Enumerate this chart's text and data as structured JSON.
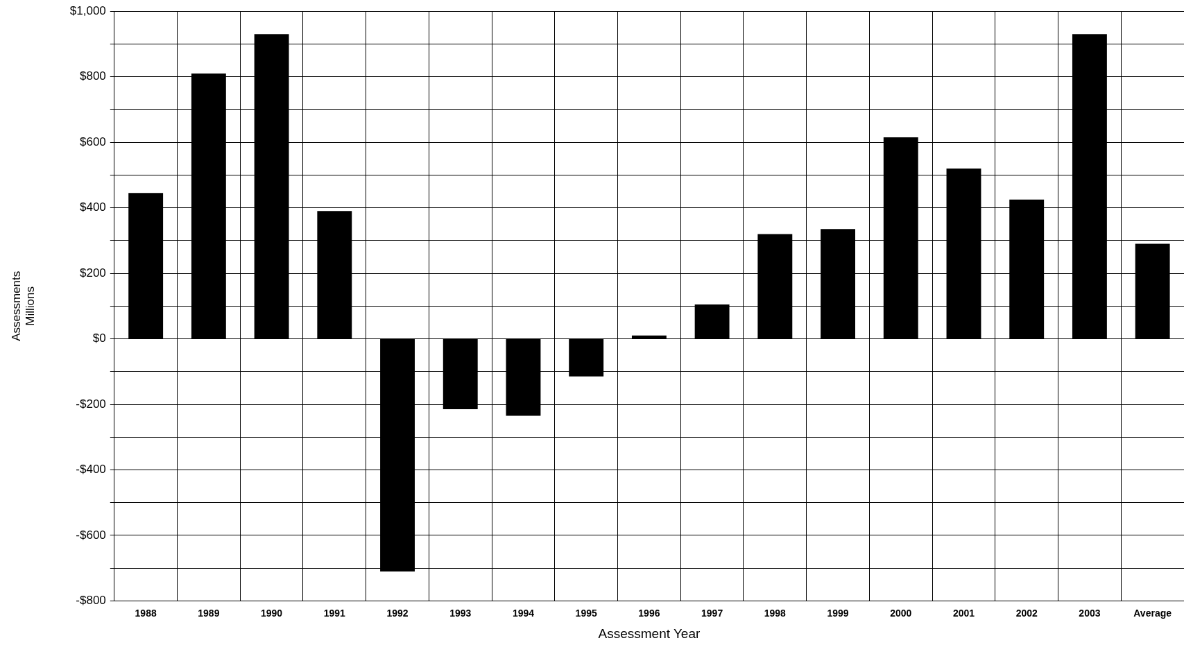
{
  "chart_data": {
    "type": "bar",
    "xlabel": "Assessment Year",
    "ylabel": "Assessments\nMillions",
    "categories": [
      "1988",
      "1989",
      "1990",
      "1991",
      "1992",
      "1993",
      "1994",
      "1995",
      "1996",
      "1997",
      "1998",
      "1999",
      "2000",
      "2001",
      "2002",
      "2003",
      "Average"
    ],
    "values": [
      445,
      810,
      930,
      390,
      -710,
      -215,
      -235,
      -115,
      10,
      105,
      320,
      335,
      615,
      520,
      425,
      930,
      290
    ],
    "color": "#000000",
    "ylim": [
      -800,
      1000
    ],
    "yticks": [
      {
        "value": -800,
        "label": "-$800"
      },
      {
        "value": -700,
        "label": null
      },
      {
        "value": -600,
        "label": "-$600"
      },
      {
        "value": -500,
        "label": null
      },
      {
        "value": -400,
        "label": "-$400"
      },
      {
        "value": -300,
        "label": null
      },
      {
        "value": -200,
        "label": "-$200"
      },
      {
        "value": -100,
        "label": null
      },
      {
        "value": 0,
        "label": "$0"
      },
      {
        "value": 100,
        "label": null
      },
      {
        "value": 200,
        "label": "$200"
      },
      {
        "value": 300,
        "label": null
      },
      {
        "value": 400,
        "label": "$400"
      },
      {
        "value": 500,
        "label": null
      },
      {
        "value": 600,
        "label": "$600"
      },
      {
        "value": 700,
        "label": null
      },
      {
        "value": 800,
        "label": "$800"
      },
      {
        "value": 900,
        "label": null
      },
      {
        "value": 1000,
        "label": "$1,000"
      }
    ],
    "grid": true,
    "legend": false
  }
}
